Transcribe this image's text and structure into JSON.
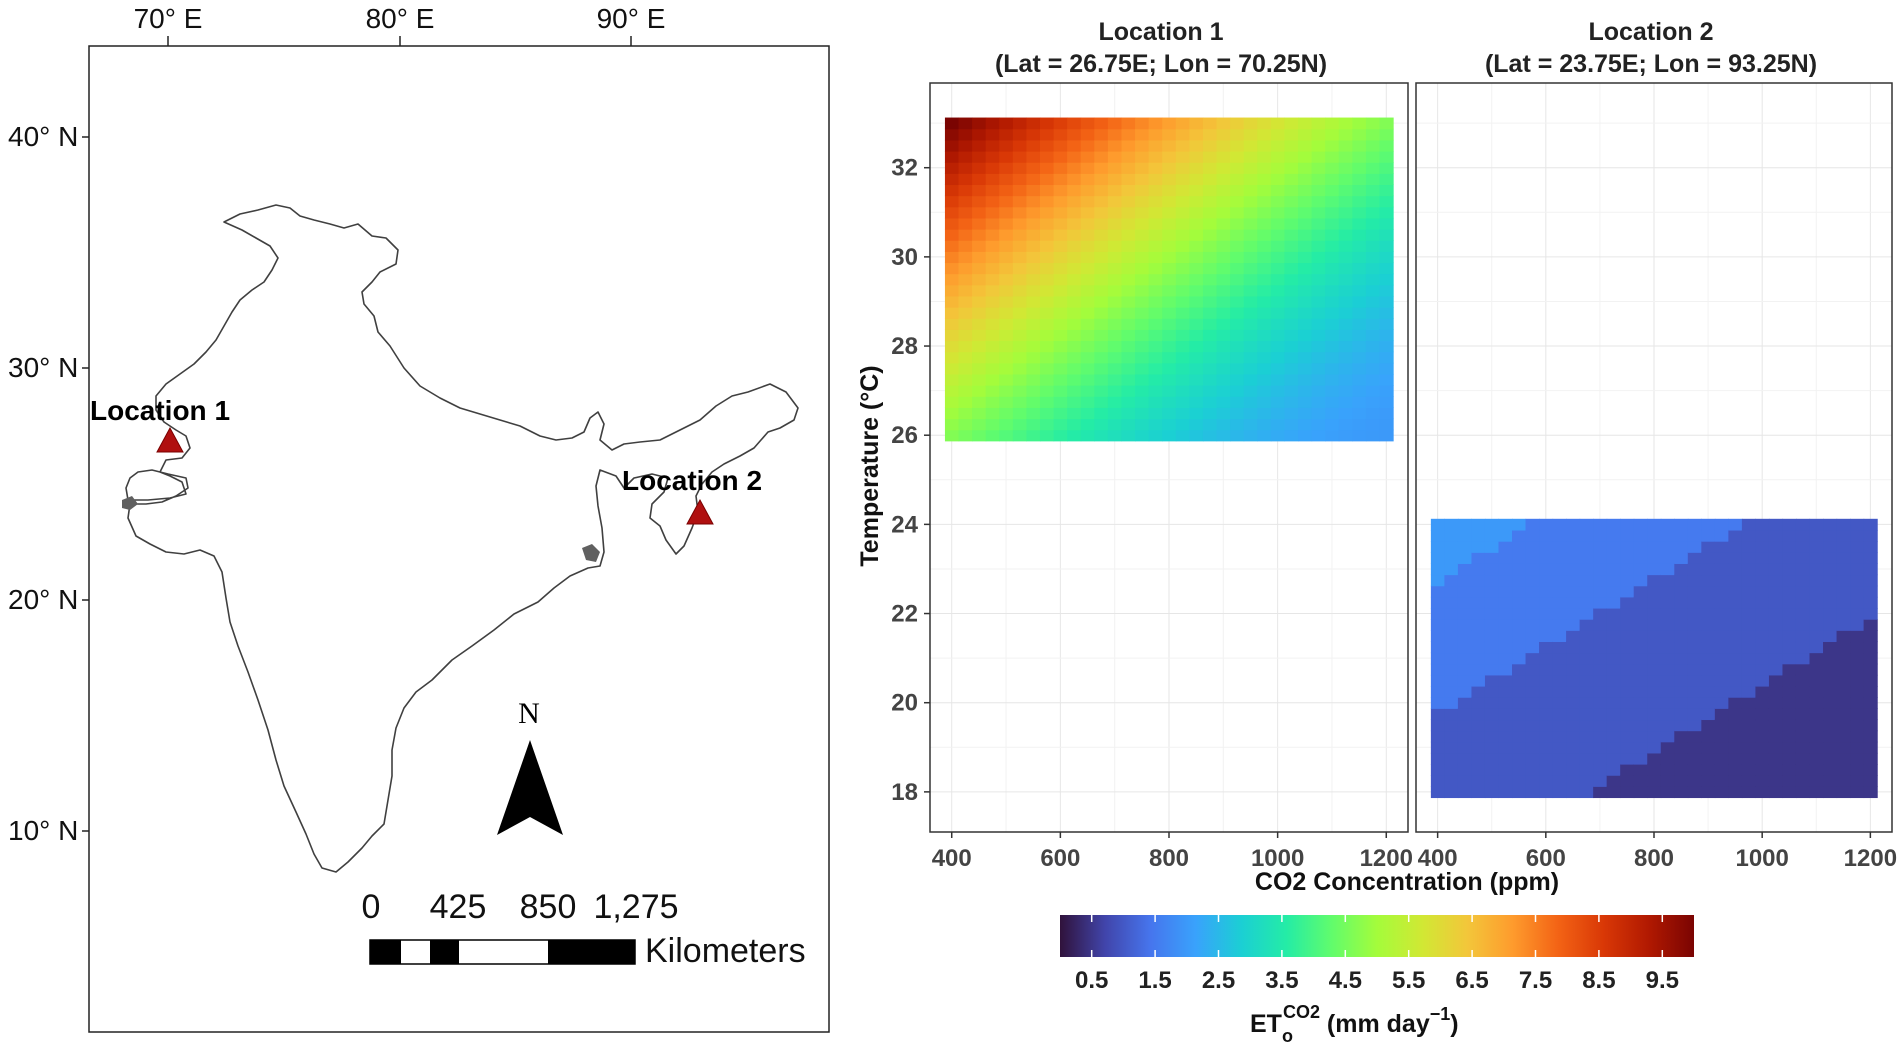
{
  "map": {
    "lon_labels": [
      "70° E",
      "80° E",
      "90° E"
    ],
    "lat_labels": [
      "40° N",
      "30° N",
      "20° N",
      "10° N"
    ],
    "locations": [
      {
        "name": "Location 1",
        "lat": 26.75,
        "lon": 70.25
      },
      {
        "name": "Location 2",
        "lat": 23.75,
        "lon": 93.25
      }
    ],
    "north_label": "N",
    "scale": {
      "ticks": [
        "0",
        "425",
        "850",
        "1,275"
      ],
      "unit": "Kilometers"
    },
    "outline_color": "#404040",
    "marker_color": "#b01010"
  },
  "chart_data": {
    "type": "heatmap",
    "xlabel": "CO2 Concentration (ppm)",
    "ylabel": "Temperature (°C)",
    "xlim": [
      360,
      1240
    ],
    "ylim": [
      17.1,
      33.9
    ],
    "x_ticks": [
      400,
      600,
      800,
      1000,
      1200
    ],
    "y_ticks": [
      18,
      20,
      22,
      24,
      26,
      28,
      30,
      32
    ],
    "panels": [
      {
        "title": "Location 1",
        "subtitle": "(Lat = 26.75E; Lon = 70.25N)",
        "co2_range": [
          400,
          1200
        ],
        "temp_range": [
          26,
          33
        ],
        "value_range": [
          2.0,
          10.0
        ]
      },
      {
        "title": "Location 2",
        "subtitle": "(Lat = 23.75E; Lon = 93.25N)",
        "co2_range": [
          400,
          1200
        ],
        "temp_range": [
          18,
          24
        ],
        "value_range": [
          0.5,
          2.0
        ]
      }
    ],
    "colorbar": {
      "ticks": [
        "0.5",
        "1.5",
        "2.5",
        "3.5",
        "4.5",
        "5.5",
        "6.5",
        "7.5",
        "8.5",
        "9.5"
      ],
      "range": [
        0.0,
        10.0
      ],
      "title_main": "ET",
      "title_sub": "o",
      "title_sup": "CO2",
      "title_unit": " (mm day",
      "title_unit_sup": "−1",
      "title_close": ")",
      "colors": [
        "#30123b",
        "#4145ab",
        "#4675ed",
        "#39a2fc",
        "#1bcfd4",
        "#24eca6",
        "#61fc6c",
        "#a4fc3b",
        "#d1e834",
        "#f3c63a",
        "#fe9b2d",
        "#f36315",
        "#d93806",
        "#b11901",
        "#7a0402"
      ]
    },
    "grid": true
  }
}
